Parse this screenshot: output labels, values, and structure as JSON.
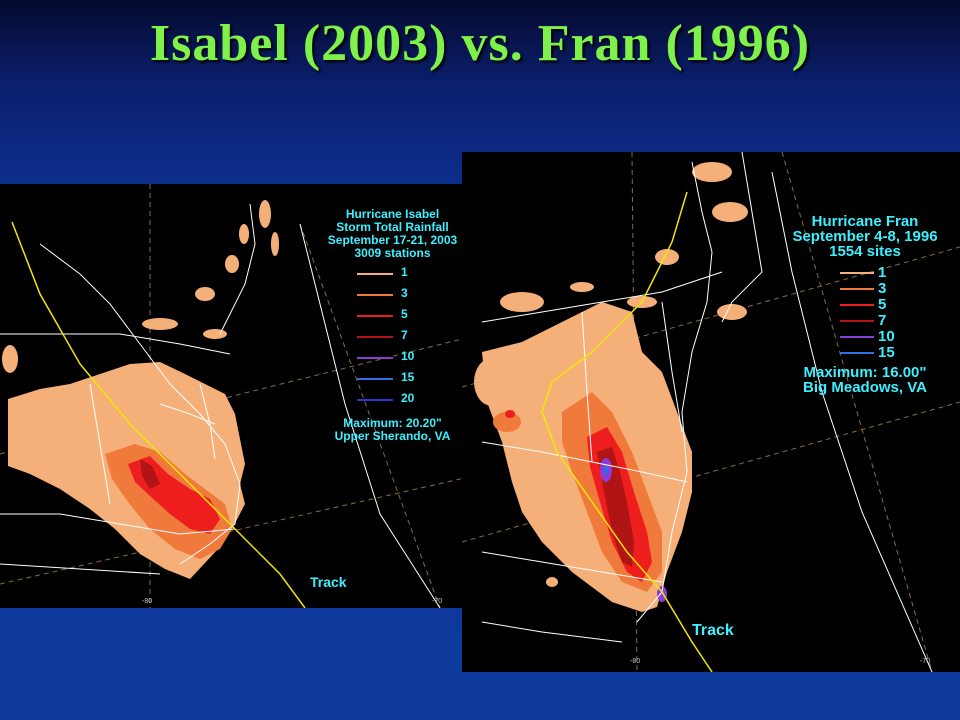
{
  "slide": {
    "title": "Isabel (2003) vs. Fran (1996)"
  },
  "colors": {
    "background": "#0e3a9e",
    "title": "#7ef24a",
    "legend_text": "#3df0ff",
    "rain_1": "#f5b07a",
    "rain_3": "#f07a3c",
    "rain_5": "#ee1e1e",
    "rain_7": "#b01414",
    "rain_10": "#8a3cd6",
    "rain_15": "#2f6fe0",
    "rain_20": "#1c3fd0",
    "track": "#f2e600",
    "boundaries": "#ffffff"
  },
  "maps": [
    {
      "id": "isabel",
      "legend": {
        "lines": [
          "Hurricane Isabel",
          "Storm Total Rainfall",
          "September 17-21, 2003",
          "3009 stations"
        ],
        "entries": [
          "1",
          "3",
          "5",
          "7",
          "10",
          "15",
          "20"
        ],
        "maximum": "Maximum:  20.20\"",
        "location": "Upper Sherando, VA"
      },
      "track_label": "Track",
      "lon_labels": [
        "-80",
        "-70"
      ]
    },
    {
      "id": "fran",
      "legend": {
        "lines": [
          "Hurricane Fran",
          "September 4-8, 1996",
          "1554 sites"
        ],
        "entries": [
          "1",
          "3",
          "5",
          "7",
          "10",
          "15"
        ],
        "maximum": "Maximum:  16.00\"",
        "location": "Big Meadows, VA"
      },
      "track_label": "Track",
      "lon_labels": [
        "-80",
        "-70"
      ]
    }
  ]
}
